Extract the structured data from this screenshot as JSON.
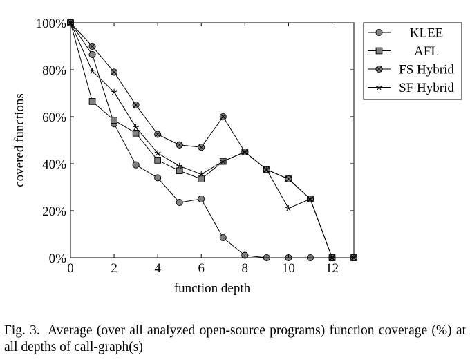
{
  "chart_data": {
    "type": "line",
    "xlabel": "function depth",
    "ylabel": "covered functions",
    "xlim": [
      0,
      13
    ],
    "ylim": [
      0,
      100
    ],
    "x_ticks": [
      "0",
      "2",
      "4",
      "6",
      "8",
      "10",
      "12"
    ],
    "y_ticks": [
      "0%",
      "20%",
      "40%",
      "60%",
      "80%",
      "100%"
    ],
    "grid": false,
    "legend_position": "outside-right-top",
    "x": [
      0,
      1,
      2,
      3,
      4,
      5,
      6,
      7,
      8,
      9,
      10,
      11,
      12,
      13
    ],
    "series": [
      {
        "name": "KLEE",
        "marker": "circle",
        "values": [
          100,
          86.5,
          57,
          39.5,
          34,
          23.5,
          25,
          8.5,
          1,
          0,
          0,
          0,
          0,
          0
        ]
      },
      {
        "name": "AFL",
        "marker": "square",
        "values": [
          100,
          66.5,
          58.5,
          53,
          41.5,
          37,
          33.5,
          41,
          45,
          37.5,
          33.5,
          25,
          0,
          0
        ]
      },
      {
        "name": "FS Hybrid",
        "marker": "otimes",
        "values": [
          100,
          90,
          79,
          65,
          52.5,
          48,
          47,
          60,
          45,
          37.5,
          33.5,
          25,
          0,
          0
        ]
      },
      {
        "name": "SF Hybrid",
        "marker": "star",
        "values": [
          100,
          79.5,
          70.5,
          55.5,
          44.5,
          39,
          35.5,
          41,
          45,
          37.5,
          21,
          25,
          0,
          0
        ]
      }
    ]
  },
  "caption": {
    "label": "Fig. 3.",
    "text": "Average (over all analyzed open-source programs) function coverage (%) at all depths of call-graph(s)"
  },
  "colors": {
    "line": "#000000",
    "marker_fill": "#808080"
  }
}
